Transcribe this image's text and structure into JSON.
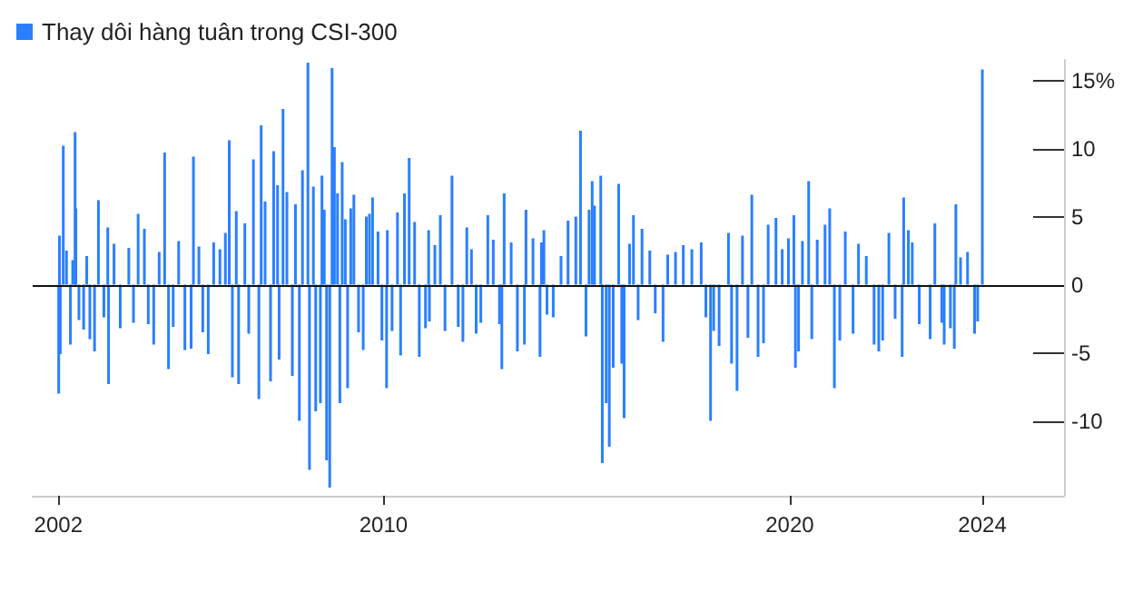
{
  "chart_data": {
    "type": "bar",
    "x": [
      "2002-01-04",
      "2002-01-11",
      "2002-01-18",
      "2002-02-14",
      "2002-03-15",
      "2002-04-19",
      "2002-05-10",
      "2002-05-31",
      "2002-06-07",
      "2002-07-05",
      "2002-08-16",
      "2002-09-13",
      "2002-10-11",
      "2002-11-22",
      "2002-12-27",
      "2003-02-14",
      "2003-03-21",
      "2003-03-28",
      "2003-05-16",
      "2003-07-11",
      "2003-09-26",
      "2003-11-07",
      "2003-12-19",
      "2004-02-13",
      "2004-03-19",
      "2004-05-07",
      "2004-06-25",
      "2004-08-13",
      "2004-09-17",
      "2004-10-29",
      "2004-12-17",
      "2005-02-11",
      "2005-04-08",
      "2005-04-29",
      "2005-06-17",
      "2005-07-22",
      "2005-09-09",
      "2005-10-28",
      "2005-12-23",
      "2006-02-10",
      "2006-03-17",
      "2006-04-14",
      "2006-05-19",
      "2006-06-09",
      "2006-08-04",
      "2006-09-08",
      "2006-10-20",
      "2006-12-08",
      "2006-12-29",
      "2007-02-02",
      "2007-03-23",
      "2007-04-20",
      "2007-05-25",
      "2007-06-08",
      "2007-07-13",
      "2007-08-17",
      "2007-10-05",
      "2007-11-02",
      "2007-12-07",
      "2008-01-04",
      "2008-02-22",
      "2008-03-07",
      "2008-04-11",
      "2008-05-02",
      "2008-06-13",
      "2008-06-27",
      "2008-07-18",
      "2008-08-08",
      "2008-09-05",
      "2008-09-26",
      "2008-10-17",
      "2008-11-14",
      "2008-12-05",
      "2008-12-26",
      "2009-01-23",
      "2009-02-13",
      "2009-03-13",
      "2009-04-10",
      "2009-05-22",
      "2009-07-03",
      "2009-07-31",
      "2009-08-28",
      "2009-09-25",
      "2009-11-13",
      "2009-12-18",
      "2010-01-29",
      "2010-02-05",
      "2010-03-19",
      "2010-05-07",
      "2010-06-04",
      "2010-07-09",
      "2010-08-20",
      "2010-10-08",
      "2010-11-19",
      "2011-01-14",
      "2011-02-11",
      "2011-02-18",
      "2011-04-08",
      "2011-05-27",
      "2011-07-08",
      "2011-09-09",
      "2011-11-04",
      "2011-12-16",
      "2012-01-20",
      "2012-03-02",
      "2012-04-13",
      "2012-05-25",
      "2012-07-27",
      "2012-09-14",
      "2012-11-09",
      "2012-11-30",
      "2012-12-21",
      "2013-02-22",
      "2013-04-19",
      "2013-06-21",
      "2013-07-05",
      "2013-09-06",
      "2013-11-08",
      "2013-11-22",
      "2013-12-13",
      "2014-01-10",
      "2014-03-07",
      "2014-05-16",
      "2014-07-18",
      "2014-09-26",
      "2014-11-07",
      "2014-12-26",
      "2015-01-23",
      "2015-02-20",
      "2015-03-13",
      "2015-05-08",
      "2015-05-22",
      "2015-06-26",
      "2015-07-24",
      "2015-08-28",
      "2015-10-16",
      "2015-11-13",
      "2015-12-04",
      "2016-01-22",
      "2016-02-26",
      "2016-04-08",
      "2016-05-13",
      "2016-07-22",
      "2016-09-09",
      "2016-11-18",
      "2016-12-30",
      "2017-03-10",
      "2017-05-19",
      "2017-08-04",
      "2017-10-27",
      "2017-12-08",
      "2018-01-19",
      "2018-02-16",
      "2018-04-06",
      "2018-06-29",
      "2018-07-27",
      "2018-09-14",
      "2018-11-02",
      "2018-12-21",
      "2019-01-25",
      "2019-03-22",
      "2019-05-10",
      "2019-06-21",
      "2019-08-30",
      "2019-10-25",
      "2019-12-20",
      "2020-02-07",
      "2020-02-21",
      "2020-03-20",
      "2020-04-24",
      "2020-06-19",
      "2020-07-17",
      "2020-09-04",
      "2020-11-13",
      "2020-12-25",
      "2021-02-05",
      "2021-03-26",
      "2021-05-14",
      "2021-07-23",
      "2021-09-10",
      "2021-11-19",
      "2022-01-28",
      "2022-03-11",
      "2022-04-15",
      "2022-06-10",
      "2022-08-05",
      "2022-10-07",
      "2022-10-21",
      "2022-12-02",
      "2023-01-06",
      "2023-03-10",
      "2023-06-16",
      "2023-07-28",
      "2023-09-29",
      "2023-10-20",
      "2023-12-15",
      "2024-01-19",
      "2024-02-02",
      "2024-03-15",
      "2024-05-17",
      "2024-07-19",
      "2024-08-16",
      "2024-09-27"
    ],
    "series": [
      {
        "name": "Thay dôi hàng tuân trong CSI-300",
        "color": "#2a7fff",
        "values": [
          -8.0,
          3.6,
          -5.1,
          10.2,
          2.5,
          -4.4,
          1.8,
          11.2,
          5.6,
          -2.6,
          -3.3,
          2.1,
          -4.0,
          -4.9,
          6.2,
          -2.4,
          4.2,
          -7.3,
          3.0,
          -3.2,
          2.7,
          -2.8,
          5.2,
          4.1,
          -2.9,
          -4.4,
          2.4,
          9.7,
          -6.2,
          -3.1,
          3.2,
          -4.8,
          -4.7,
          9.4,
          2.8,
          -3.5,
          -5.1,
          3.1,
          2.6,
          3.8,
          10.6,
          -6.8,
          5.4,
          -7.3,
          4.5,
          -3.6,
          9.2,
          -8.4,
          11.7,
          6.1,
          -7.1,
          9.8,
          7.3,
          -5.5,
          12.9,
          6.8,
          -6.7,
          5.9,
          -10.0,
          8.4,
          16.3,
          -13.6,
          7.2,
          -9.3,
          -8.7,
          8.0,
          5.5,
          -12.9,
          -14.9,
          15.9,
          10.1,
          6.7,
          -8.7,
          9.0,
          4.8,
          -7.6,
          5.6,
          6.6,
          -3.5,
          -4.8,
          5.0,
          5.2,
          6.4,
          3.9,
          -4.1,
          -7.6,
          4.0,
          -3.4,
          5.3,
          -5.2,
          6.7,
          9.3,
          4.6,
          -5.3,
          -3.2,
          4.0,
          -2.7,
          2.9,
          5.1,
          -3.4,
          8.0,
          -3.1,
          -4.2,
          4.2,
          2.6,
          -3.6,
          -2.8,
          5.1,
          3.3,
          -2.9,
          -6.2,
          6.7,
          3.1,
          -4.9,
          -4.4,
          5.5,
          3.4,
          -5.3,
          3.1,
          4.0,
          -2.2,
          -2.4,
          2.1,
          4.7,
          5.0,
          11.3,
          -3.8,
          5.5,
          7.6,
          5.8,
          8.0,
          -13.1,
          -8.7,
          -11.9,
          -6.1,
          7.4,
          -5.8,
          -9.8,
          3.0,
          5.1,
          -2.6,
          4.1,
          2.5,
          -2.1,
          -4.2,
          2.2,
          2.4,
          2.9,
          2.6,
          3.1,
          -2.4,
          -10.0,
          -3.4,
          -4.5,
          3.8,
          -5.8,
          -7.8,
          3.6,
          -3.9,
          6.6,
          -5.3,
          -4.3,
          4.4,
          4.9,
          2.6,
          3.4,
          5.1,
          -6.1,
          -4.9,
          3.2,
          7.6,
          -4.0,
          3.3,
          4.4,
          5.6,
          -7.6,
          -4.1,
          3.9,
          -3.6,
          3.0,
          2.1,
          -4.4,
          -4.9,
          -4.1,
          3.8,
          -2.5,
          -5.3,
          6.4,
          4.0,
          3.1,
          -2.9,
          -4.0,
          4.5,
          -2.8,
          -4.4,
          -3.2,
          -4.7,
          5.9,
          2.0,
          2.4,
          -3.6,
          -2.7,
          15.8
        ]
      }
    ],
    "xlim": [
      "2001-05-15",
      "2026-10-01"
    ],
    "xticks": [
      {
        "value": "2002-01-01",
        "label": "2002"
      },
      {
        "value": "2010-01-01",
        "label": "2010"
      },
      {
        "value": "2020-01-01",
        "label": "2020"
      },
      {
        "value": "2024-09-27",
        "label": "2024"
      }
    ],
    "ylim": [
      -15.5,
      16.5
    ],
    "yticks": [
      -10,
      -5,
      0,
      5,
      10,
      {
        "value": 15,
        "label": "15%"
      }
    ],
    "ref_lines": [
      {
        "axis": "y",
        "value": 0,
        "color": "#111111"
      }
    ],
    "legend": "top left"
  }
}
